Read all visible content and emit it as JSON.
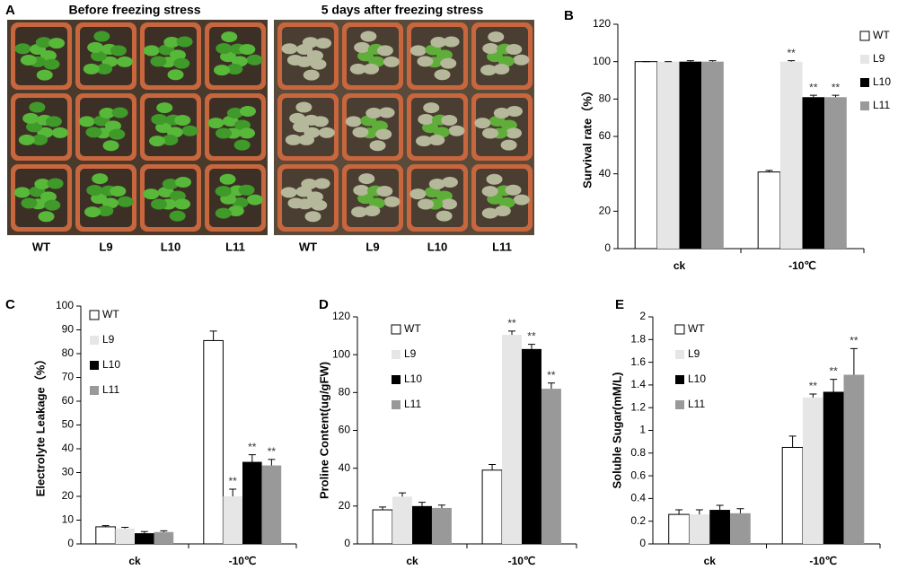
{
  "photo": {
    "panel_label": "A",
    "titles": [
      "Before freezing stress",
      "5 days after freezing stress"
    ],
    "genotypes": [
      "WT",
      "L9",
      "L10",
      "L11"
    ]
  },
  "chart_data": [
    {
      "type": "bar",
      "panel_label": "B",
      "ylabel": "Survival rate（%）",
      "categories": [
        "ck",
        "-10℃"
      ],
      "ylim": [
        0,
        120
      ],
      "yticks": [
        0,
        20,
        40,
        60,
        80,
        100,
        120
      ],
      "legend": "right",
      "series": [
        {
          "name": "WT",
          "color": "#ffffff",
          "values": [
            100,
            41
          ],
          "errors": [
            0,
            0.8
          ],
          "annotations": [
            null,
            null
          ]
        },
        {
          "name": "L9",
          "color": "#e6e6e6",
          "values": [
            100,
            100
          ],
          "errors": [
            0,
            0.5
          ],
          "annotations": [
            null,
            "**"
          ]
        },
        {
          "name": "L10",
          "color": "#000000",
          "values": [
            100,
            81
          ],
          "errors": [
            0.5,
            1
          ],
          "annotations": [
            null,
            "**"
          ]
        },
        {
          "name": "L11",
          "color": "#999999",
          "values": [
            100,
            81
          ],
          "errors": [
            0.5,
            1
          ],
          "annotations": [
            null,
            "**"
          ]
        }
      ]
    },
    {
      "type": "bar",
      "panel_label": "C",
      "ylabel": "Electrolyte Leakage（%）",
      "categories": [
        "ck",
        "-10℃"
      ],
      "ylim": [
        0,
        100
      ],
      "yticks": [
        0,
        10,
        20,
        30,
        40,
        50,
        60,
        70,
        80,
        90,
        100
      ],
      "legend": "upper left",
      "series": [
        {
          "name": "WT",
          "color": "#ffffff",
          "values": [
            7.2,
            85.5
          ],
          "errors": [
            0.5,
            4
          ],
          "annotations": [
            null,
            null
          ]
        },
        {
          "name": "L9",
          "color": "#e6e6e6",
          "values": [
            6.5,
            20
          ],
          "errors": [
            0.5,
            3
          ],
          "annotations": [
            null,
            "**"
          ]
        },
        {
          "name": "L10",
          "color": "#000000",
          "values": [
            4.5,
            34.5
          ],
          "errors": [
            0.7,
            3
          ],
          "annotations": [
            null,
            "**"
          ]
        },
        {
          "name": "L11",
          "color": "#999999",
          "values": [
            5,
            33
          ],
          "errors": [
            0.5,
            2.5
          ],
          "annotations": [
            null,
            "**"
          ]
        }
      ]
    },
    {
      "type": "bar",
      "panel_label": "D",
      "ylabel": "Proline Content(ug/gFW)",
      "categories": [
        "ck",
        "-10℃"
      ],
      "ylim": [
        0,
        120
      ],
      "yticks": [
        0,
        20,
        40,
        60,
        80,
        100,
        120
      ],
      "legend": "upper left",
      "series": [
        {
          "name": "WT",
          "color": "#ffffff",
          "values": [
            18,
            39
          ],
          "errors": [
            1.5,
            3
          ],
          "annotations": [
            null,
            null
          ]
        },
        {
          "name": "L9",
          "color": "#e6e6e6",
          "values": [
            25,
            110.5
          ],
          "errors": [
            2,
            2
          ],
          "annotations": [
            null,
            "**"
          ]
        },
        {
          "name": "L10",
          "color": "#000000",
          "values": [
            20,
            103
          ],
          "errors": [
            2,
            2.5
          ],
          "annotations": [
            null,
            "**"
          ]
        },
        {
          "name": "L11",
          "color": "#999999",
          "values": [
            19,
            82
          ],
          "errors": [
            1.5,
            3
          ],
          "annotations": [
            null,
            "**"
          ]
        }
      ]
    },
    {
      "type": "bar",
      "panel_label": "E",
      "ylabel": "Soluble Sugar(mM/L)",
      "categories": [
        "ck",
        "-10℃"
      ],
      "ylim": [
        0,
        2
      ],
      "yticks": [
        0,
        0.2,
        0.4,
        0.6,
        0.8,
        1,
        1.2,
        1.4,
        1.6,
        1.8,
        2
      ],
      "legend": "upper left",
      "series": [
        {
          "name": "WT",
          "color": "#ffffff",
          "values": [
            0.26,
            0.85
          ],
          "errors": [
            0.04,
            0.1
          ],
          "annotations": [
            null,
            null
          ]
        },
        {
          "name": "L9",
          "color": "#e6e6e6",
          "values": [
            0.26,
            1.29
          ],
          "errors": [
            0.04,
            0.03
          ],
          "annotations": [
            null,
            "**"
          ]
        },
        {
          "name": "L10",
          "color": "#000000",
          "values": [
            0.3,
            1.34
          ],
          "errors": [
            0.04,
            0.11
          ],
          "annotations": [
            null,
            "**"
          ]
        },
        {
          "name": "L11",
          "color": "#999999",
          "values": [
            0.27,
            1.49
          ],
          "errors": [
            0.04,
            0.23
          ],
          "annotations": [
            null,
            "**"
          ]
        }
      ]
    }
  ]
}
